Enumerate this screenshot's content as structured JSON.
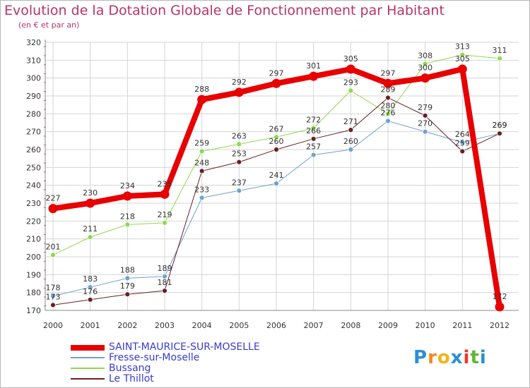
{
  "chart_data": {
    "type": "line",
    "title": "Evolution de la Dotation Globale de Fonctionnement par Habitant",
    "subtitle": "(en € et par an)",
    "xlabel": "",
    "ylabel": "",
    "x": [
      "2000",
      "2001",
      "2002",
      "2003",
      "2004",
      "2005",
      "2006",
      "2007",
      "2008",
      "2009",
      "2010",
      "2011",
      "2012"
    ],
    "ylim": [
      170,
      320
    ],
    "yticks": [
      170,
      180,
      190,
      200,
      210,
      220,
      230,
      240,
      250,
      260,
      270,
      280,
      290,
      300,
      310,
      320
    ],
    "series": [
      {
        "name": "SAINT-MAURICE-SUR-MOSELLE",
        "color": "#e80000",
        "values": [
          227,
          230,
          234,
          235,
          288,
          292,
          297,
          301,
          305,
          297,
          300,
          305,
          172
        ]
      },
      {
        "name": "Fresse-sur-Moselle",
        "color": "#6fa2cf",
        "values": [
          178,
          183,
          188,
          189,
          233,
          237,
          241,
          257,
          260,
          276,
          270,
          264,
          269
        ]
      },
      {
        "name": "Bussang",
        "color": "#8fd850",
        "values": [
          201,
          211,
          218,
          219,
          259,
          263,
          267,
          272,
          293,
          280,
          308,
          313,
          311
        ]
      },
      {
        "name": "Le Thillot",
        "color": "#6b1f24",
        "values": [
          173,
          176,
          179,
          181,
          248,
          253,
          260,
          266,
          271,
          289,
          279,
          259,
          269
        ]
      }
    ]
  },
  "logo": {
    "letters": [
      "P",
      "r",
      "o",
      "x",
      "i",
      "t",
      "i"
    ],
    "colors": [
      "#2a8fd6",
      "#f08a1a",
      "#f0b41a",
      "#2a8fd6",
      "#ee3a2a",
      "#5cb82e",
      "#2a8fd6"
    ]
  }
}
